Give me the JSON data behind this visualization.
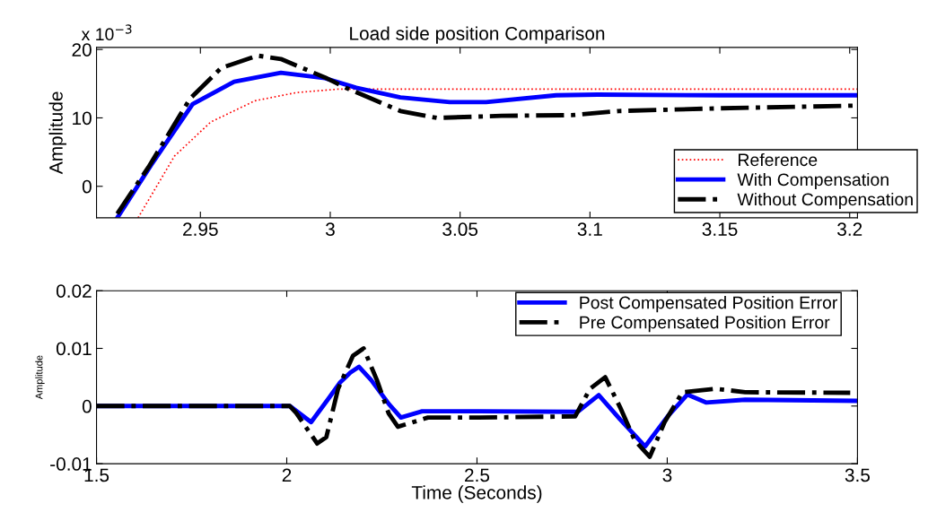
{
  "chart_data": [
    {
      "type": "line",
      "title": "Load side position Comparison",
      "ylabel": "Amplitude",
      "annotations": [
        "x 10$^{−3}$"
      ],
      "xlim": [
        2.91,
        3.203
      ],
      "xticks": [
        2.95,
        3,
        3.05,
        3.1,
        3.15,
        3.2
      ],
      "ylim": [
        -4.6,
        20.3
      ],
      "yticks": [
        0,
        10,
        20
      ],
      "grid": false,
      "legend": "bottom right",
      "marker": "none",
      "series": [
        {
          "name": "Reference",
          "color": "#ff0000",
          "line_style": "dotted",
          "x": [
            2.926,
            2.94,
            2.954,
            2.971,
            2.987,
            3.003,
            3.05,
            3.1,
            3.15,
            3.203
          ],
          "values": [
            -4.6,
            4.4,
            9.4,
            12.5,
            13.7,
            14.2,
            14.2,
            14.2,
            14.2,
            14.2
          ]
        },
        {
          "name": "With Compensation",
          "color": "#0000ff",
          "line_style": "solid",
          "x": [
            2.918,
            2.931,
            2.947,
            2.963,
            2.981,
            2.998,
            3.01,
            3.027,
            3.046,
            3.06,
            3.087,
            3.103,
            3.15,
            3.203
          ],
          "values": [
            -4.6,
            3.1,
            12.0,
            15.3,
            16.6,
            15.8,
            14.4,
            13.0,
            12.3,
            12.3,
            13.3,
            13.4,
            13.3,
            13.3
          ]
        },
        {
          "name": "Without Compensation",
          "color": "#000000",
          "line_style": "dashdot",
          "x": [
            2.918,
            2.93,
            2.946,
            2.958,
            2.972,
            2.981,
            2.998,
            3.006,
            3.027,
            3.041,
            3.066,
            3.093,
            3.111,
            3.15,
            3.203
          ],
          "values": [
            -4.0,
            2.8,
            12.8,
            17.3,
            19.1,
            18.6,
            15.9,
            14.4,
            11.0,
            10.0,
            10.3,
            10.4,
            11.0,
            11.4,
            11.8
          ]
        }
      ]
    },
    {
      "type": "line",
      "xlabel": "Time (Seconds)",
      "ylabel": "Amplitude",
      "xlim": [
        1.5,
        3.5
      ],
      "xticks": [
        1.5,
        2,
        2.5,
        3,
        3.5
      ],
      "ylim": [
        -0.01,
        0.02
      ],
      "yticks": [
        -0.01,
        0,
        0.01,
        0.02
      ],
      "grid": false,
      "legend": "top right",
      "marker": "none",
      "series": [
        {
          "name": "Post Compensated Position Error",
          "color": "#0000ff",
          "line_style": "solid",
          "x": [
            1.5,
            2.008,
            2.064,
            2.111,
            2.139,
            2.167,
            2.19,
            2.222,
            2.269,
            2.3,
            2.356,
            2.505,
            2.765,
            2.82,
            2.876,
            2.942,
            3.001,
            3.053,
            3.103,
            3.205,
            3.498
          ],
          "values": [
            0,
            0,
            -0.0028,
            0.0014,
            0.004,
            0.0058,
            0.0068,
            0.0045,
            0.0003,
            -0.002,
            -0.0009,
            -0.0009,
            -0.001,
            0.0019,
            -0.0023,
            -0.007,
            -0.0018,
            0.002,
            0.0006,
            0.0011,
            0.0009
          ]
        },
        {
          "name": "Pre Compensated Position Error",
          "color": "#000000",
          "line_style": "dashdot",
          "x": [
            1.5,
            2.008,
            2.025,
            2.08,
            2.104,
            2.135,
            2.174,
            2.202,
            2.237,
            2.268,
            2.292,
            2.371,
            2.505,
            2.758,
            2.797,
            2.837,
            2.876,
            2.915,
            2.954,
            2.993,
            3.04,
            3.127,
            3.205,
            3.481
          ],
          "values": [
            0,
            0,
            -0.0012,
            -0.0065,
            -0.0054,
            0.003,
            0.0087,
            0.01,
            0.0045,
            -0.0013,
            -0.0036,
            -0.002,
            -0.002,
            -0.0018,
            0.003,
            0.005,
            -0.0002,
            -0.006,
            -0.0088,
            -0.0028,
            0.0024,
            0.003,
            0.0024,
            0.0023
          ]
        }
      ]
    }
  ]
}
